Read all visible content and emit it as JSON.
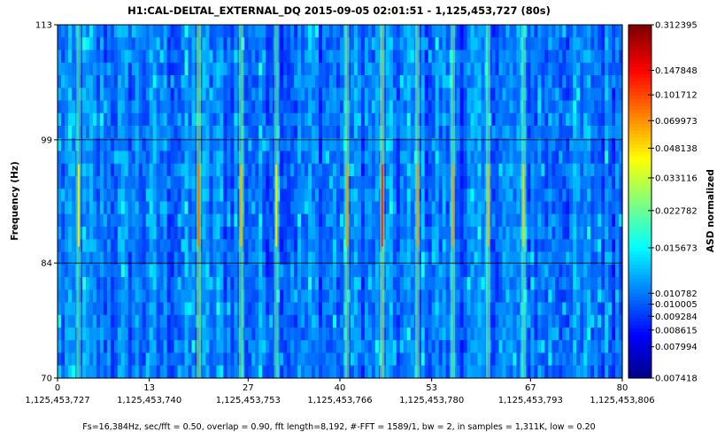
{
  "chart_data": {
    "type": "heatmap",
    "title": "H1:CAL-DELTAL_EXTERNAL_DQ 2015-09-05 02:01:51 - 1,125,453,727 (80s)",
    "ylabel": "Frequency (Hz)",
    "colorbar_label": "ASD normalized",
    "xlim": [
      0,
      80
    ],
    "ylim": [
      70,
      113
    ],
    "x_ticks": [
      {
        "value": 0,
        "label": "0",
        "gps": "1,125,453,727"
      },
      {
        "value": 13,
        "label": "13",
        "gps": "1,125,453,740"
      },
      {
        "value": 27,
        "label": "27",
        "gps": "1,125,453,753"
      },
      {
        "value": 40,
        "label": "40",
        "gps": "1,125,453,766"
      },
      {
        "value": 53,
        "label": "53",
        "gps": "1,125,453,780"
      },
      {
        "value": 67,
        "label": "67",
        "gps": "1,125,453,793"
      },
      {
        "value": 80,
        "label": "80",
        "gps": "1,125,453,806"
      }
    ],
    "y_ticks": [
      {
        "value": 70,
        "label": "70"
      },
      {
        "value": 84,
        "label": "84"
      },
      {
        "value": 99,
        "label": "99"
      },
      {
        "value": 113,
        "label": "113"
      }
    ],
    "gridlines_y": [
      84,
      99
    ],
    "colorbar_ticks": [
      "0.312395",
      "0.147848",
      "0.101712",
      "0.069973",
      "0.048138",
      "0.033116",
      "0.022782",
      "0.015673",
      "0.010782",
      "0.010005",
      "0.009284",
      "0.008615",
      "0.007994",
      "0.007418"
    ],
    "colormap": "jet",
    "colorbar_range": [
      0.007418,
      0.312395
    ],
    "bright_vertical_lines": [
      {
        "t": 3,
        "intensity": 0.45
      },
      {
        "t": 20,
        "intensity": 0.7
      },
      {
        "t": 26,
        "intensity": 0.55
      },
      {
        "t": 31,
        "intensity": 0.45
      },
      {
        "t": 41,
        "intensity": 0.62
      },
      {
        "t": 46,
        "intensity": 0.85
      },
      {
        "t": 51,
        "intensity": 0.62
      },
      {
        "t": 56,
        "intensity": 0.6
      },
      {
        "t": 61,
        "intensity": 0.55
      },
      {
        "t": 66,
        "intensity": 0.5
      }
    ]
  },
  "footer": "Fs=16,384Hz, sec/fft = 0.50, overlap = 0.90, fft length=8,192, #-FFT = 1589/1, bw = 2, in samples = 1,311K, low = 0.20"
}
